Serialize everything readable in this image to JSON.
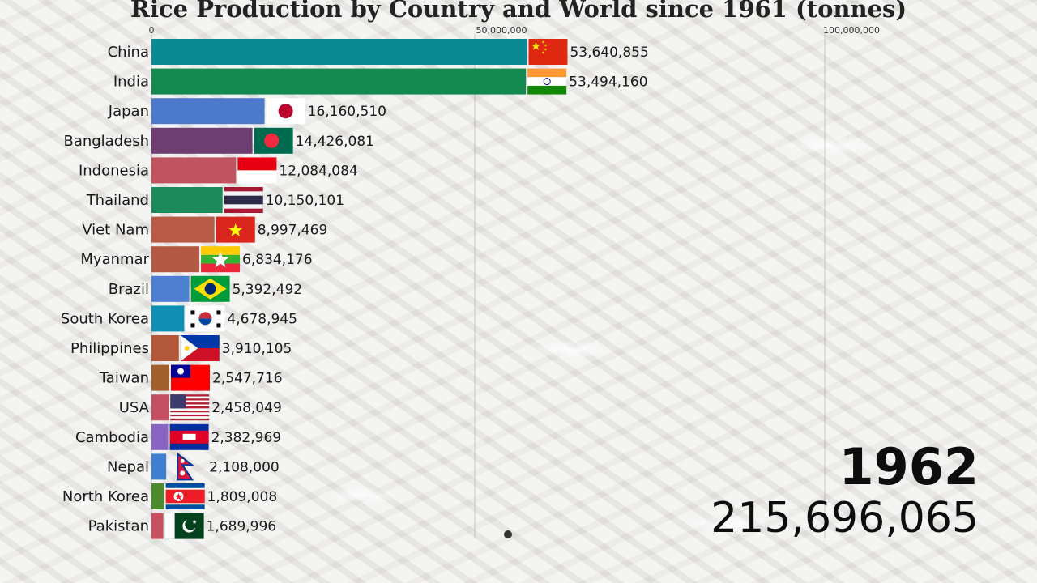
{
  "chart_data": {
    "type": "bar",
    "title": "Rice Production by Country and World since 1961 (tonnes)",
    "xlim": [
      0,
      100000000
    ],
    "ticks": [
      {
        "value": 0,
        "label": "0"
      },
      {
        "value": 50000000,
        "label": "50,000,000"
      },
      {
        "value": 100000000,
        "label": "100,000,000"
      }
    ],
    "grid": true,
    "year": "1962",
    "total": "215,696,065",
    "categories": [
      "China",
      "India",
      "Japan",
      "Bangladesh",
      "Indonesia",
      "Thailand",
      "Viet Nam",
      "Myanmar",
      "Brazil",
      "South Korea",
      "Philippines",
      "Taiwan",
      "USA",
      "Cambodia",
      "Nepal",
      "North Korea",
      "Pakistan"
    ],
    "values": [
      53640855,
      53494160,
      16160510,
      14426081,
      12084084,
      10150101,
      8997469,
      6834176,
      5392492,
      4678945,
      3910105,
      2547716,
      2458049,
      2382969,
      2108000,
      1809008,
      1689996
    ],
    "value_labels": [
      "53,640,855",
      "53,494,160",
      "16,160,510",
      "14,426,081",
      "12,084,084",
      "10,150,101",
      "8,997,469",
      "6,834,176",
      "5,392,492",
      "4,678,945",
      "3,910,105",
      "2,547,716",
      "2,458,049",
      "2,382,969",
      "2,108,000",
      "1,809,008",
      "1,689,996"
    ],
    "colors": [
      "#0b8a96",
      "#13884f",
      "#4c79cb",
      "#6e3d72",
      "#c2535e",
      "#1e8a5a",
      "#b85a45",
      "#b55a42",
      "#4c7fd0",
      "#0f8fb5",
      "#b2573a",
      "#a0602e",
      "#c24f62",
      "#8865c4",
      "#3f7fd1",
      "#4c8a2d",
      "#c85060"
    ],
    "flags": [
      "china-flag",
      "india-flag",
      "japan-flag",
      "bangladesh-flag",
      "indonesia-flag",
      "thailand-flag",
      "vietnam-flag",
      "myanmar-flag",
      "brazil-flag",
      "south-korea-flag",
      "philippines-flag",
      "taiwan-flag",
      "usa-flag",
      "cambodia-flag",
      "nepal-flag",
      "north-korea-flag",
      "pakistan-flag"
    ]
  }
}
